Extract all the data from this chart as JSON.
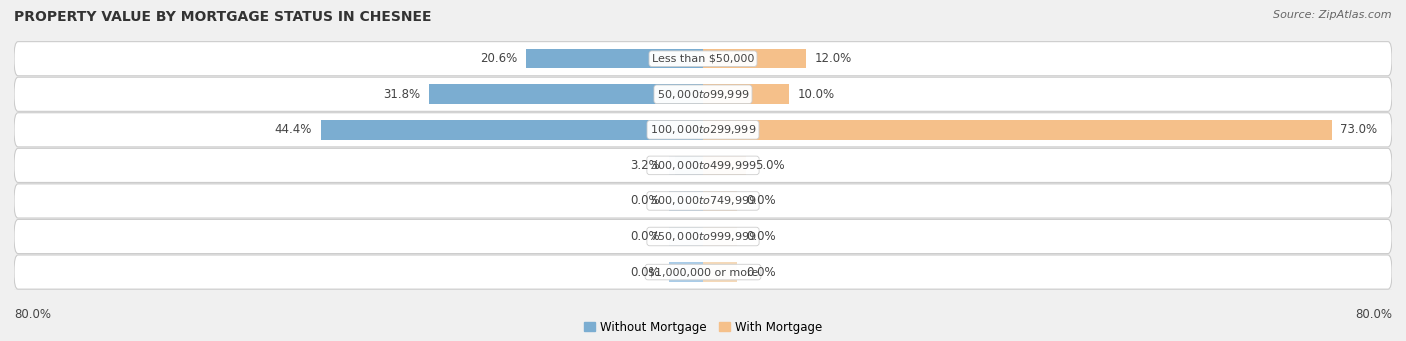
{
  "title": "PROPERTY VALUE BY MORTGAGE STATUS IN CHESNEE",
  "source": "Source: ZipAtlas.com",
  "categories": [
    "Less than $50,000",
    "$50,000 to $99,999",
    "$100,000 to $299,999",
    "$300,000 to $499,999",
    "$500,000 to $749,999",
    "$750,000 to $999,999",
    "$1,000,000 or more"
  ],
  "without_mortgage": [
    20.6,
    31.8,
    44.4,
    3.2,
    0.0,
    0.0,
    0.0
  ],
  "with_mortgage": [
    12.0,
    10.0,
    73.0,
    5.0,
    0.0,
    0.0,
    0.0
  ],
  "color_without": "#7badd1",
  "color_with": "#f5c08a",
  "color_without_light": "#aacce8",
  "color_with_light": "#f5d9b8",
  "bar_height": 0.55,
  "xlim_left": -80,
  "xlim_right": 80,
  "x_axis_left_label": "80.0%",
  "x_axis_right_label": "80.0%",
  "legend_labels": [
    "Without Mortgage",
    "With Mortgage"
  ],
  "bg_color": "#f0f0f0",
  "row_light": "#f5f5f5",
  "row_dark": "#e8e8e8",
  "title_fontsize": 10,
  "source_fontsize": 8,
  "label_fontsize": 8.5,
  "category_fontsize": 8,
  "min_stub": 4.0
}
